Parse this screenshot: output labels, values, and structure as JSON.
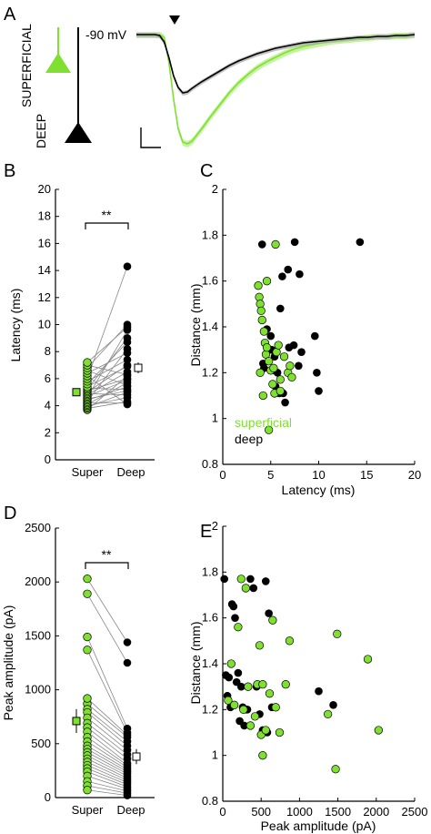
{
  "panel_labels": {
    "A": "A",
    "B": "B",
    "C": "C",
    "D": "D",
    "E": "E"
  },
  "colors": {
    "superficial": "#7fe030",
    "deep": "#000000",
    "line": "#888888"
  },
  "chart_data": [
    {
      "panel": "A",
      "type": "line",
      "annotation": "-90 mV",
      "cell_labels": [
        "SUPERFICIAL",
        "DEEP"
      ],
      "marker": "stimulus-triangle",
      "series": [
        {
          "key": "superficial",
          "x": [
            0,
            5,
            10,
            15,
            20,
            25,
            30,
            35,
            40,
            45,
            50,
            55,
            60,
            70,
            80,
            90,
            100,
            110,
            120,
            130,
            140,
            150,
            160,
            170,
            180,
            190,
            200,
            210,
            220,
            230,
            240,
            250,
            260,
            270,
            280,
            290,
            300
          ],
          "values": [
            0,
            0,
            0,
            0,
            0,
            0,
            -3,
            -30,
            -70,
            -103,
            -118,
            -120,
            -117,
            -104,
            -90,
            -77,
            -64,
            -53,
            -44,
            -36,
            -30,
            -25,
            -20,
            -16,
            -13,
            -11,
            -9,
            -7,
            -6,
            -5,
            -4,
            -3,
            -2,
            -2,
            -1,
            -1,
            0
          ]
        },
        {
          "key": "deep",
          "x": [
            0,
            5,
            10,
            15,
            20,
            25,
            30,
            35,
            40,
            45,
            50,
            55,
            60,
            70,
            80,
            90,
            100,
            110,
            120,
            130,
            140,
            150,
            160,
            170,
            180,
            190,
            200,
            210,
            220,
            230,
            240,
            250,
            260,
            270,
            280,
            290,
            300
          ],
          "values": [
            0,
            0,
            0,
            0,
            0,
            -1,
            -8,
            -25,
            -45,
            -58,
            -64,
            -63,
            -59,
            -52,
            -46,
            -40,
            -34,
            -29,
            -25,
            -21,
            -18,
            -15,
            -13,
            -11,
            -9,
            -8,
            -7,
            -6,
            -5,
            -4,
            -3,
            -3,
            -2,
            -2,
            -1,
            -1,
            0
          ]
        }
      ]
    },
    {
      "panel": "B",
      "type": "scatter",
      "categories": [
        "Super",
        "Deep"
      ],
      "ylabel": "Latency (ms)",
      "ylim": [
        0,
        20
      ],
      "yticks": [
        0,
        2,
        4,
        6,
        8,
        10,
        12,
        14,
        16,
        18,
        20
      ],
      "significance": "**",
      "super": [
        3.7,
        3.8,
        3.9,
        4.0,
        4.1,
        4.2,
        4.3,
        4.4,
        4.5,
        4.6,
        4.7,
        4.8,
        4.9,
        5.0,
        5.1,
        5.2,
        5.3,
        5.4,
        5.6,
        5.8,
        6.0,
        6.2,
        6.4,
        6.6,
        6.8,
        7.0,
        7.2
      ],
      "deep": [
        6.2,
        4.3,
        5.0,
        4.6,
        5.7,
        4.2,
        8.2,
        5.4,
        5.1,
        9.6,
        5.9,
        6.5,
        4.8,
        7.0,
        6.0,
        9.0,
        5.2,
        6.9,
        8.7,
        7.4,
        14.3,
        4.1,
        7.9,
        5.5,
        10.0,
        6.3,
        9.8
      ],
      "mean_super": 5.0,
      "mean_deep": 6.8,
      "err_super": 0.2,
      "err_deep": 0.4
    },
    {
      "panel": "C",
      "type": "scatter",
      "xlabel": "Latency (ms)",
      "ylabel": "Distance (mm)",
      "xlim": [
        0,
        20
      ],
      "ylim": [
        0.8,
        2.0
      ],
      "xticks": [
        0,
        5,
        10,
        15,
        20
      ],
      "yticks": [
        0.8,
        1,
        1.2,
        1.4,
        1.6,
        1.8,
        2
      ],
      "legend": [
        "superficial",
        "deep"
      ],
      "superficial": [
        [
          3.7,
          1.58
        ],
        [
          3.8,
          1.53
        ],
        [
          3.9,
          1.5
        ],
        [
          4.0,
          1.47
        ],
        [
          4.1,
          1.43
        ],
        [
          4.3,
          1.38
        ],
        [
          4.4,
          1.33
        ],
        [
          4.5,
          1.28
        ],
        [
          4.6,
          1.31
        ],
        [
          4.8,
          1.25
        ],
        [
          5.0,
          1.21
        ],
        [
          5.2,
          1.15
        ],
        [
          5.4,
          1.11
        ],
        [
          5.6,
          1.29
        ],
        [
          5.8,
          1.32
        ],
        [
          6.0,
          1.17
        ],
        [
          6.4,
          1.27
        ],
        [
          6.8,
          1.2
        ],
        [
          7.0,
          1.23
        ],
        [
          7.2,
          1.18
        ],
        [
          4.2,
          1.1
        ],
        [
          4.8,
          0.95
        ],
        [
          5.3,
          1.22
        ],
        [
          4.6,
          1.6
        ],
        [
          5.5,
          1.76
        ],
        [
          6.0,
          1.12
        ],
        [
          3.9,
          1.2
        ]
      ],
      "deep": [
        [
          4.1,
          1.76
        ],
        [
          6.2,
          1.62
        ],
        [
          6.8,
          1.65
        ],
        [
          7.5,
          1.77
        ],
        [
          8.0,
          1.63
        ],
        [
          14.3,
          1.77
        ],
        [
          9.6,
          1.36
        ],
        [
          10.0,
          1.12
        ],
        [
          4.3,
          1.22
        ],
        [
          4.8,
          1.3
        ],
        [
          5.0,
          1.36
        ],
        [
          5.4,
          1.27
        ],
        [
          5.7,
          1.2
        ],
        [
          5.9,
          1.11
        ],
        [
          6.5,
          1.07
        ],
        [
          6.9,
          1.31
        ],
        [
          7.4,
          1.32
        ],
        [
          7.9,
          1.23
        ],
        [
          8.2,
          1.29
        ],
        [
          5.1,
          1.3
        ],
        [
          4.6,
          1.39
        ],
        [
          6.0,
          1.48
        ],
        [
          5.2,
          1.21
        ],
        [
          4.2,
          1.24
        ],
        [
          5.5,
          1.14
        ],
        [
          6.3,
          1.11
        ],
        [
          9.8,
          1.2
        ]
      ]
    },
    {
      "panel": "D",
      "type": "scatter",
      "categories": [
        "Super",
        "Deep"
      ],
      "ylabel": "Peak amplitude (pA)",
      "ylim": [
        0,
        2500
      ],
      "yticks": [
        0,
        500,
        1000,
        1500,
        2000,
        2500
      ],
      "significance": "**",
      "super": [
        2030,
        1890,
        1490,
        1370,
        870,
        820,
        790,
        740,
        690,
        650,
        610,
        560,
        520,
        480,
        450,
        420,
        390,
        360,
        330,
        300,
        270,
        240,
        200,
        150,
        110,
        70,
        920
      ],
      "deep": [
        1440,
        1250,
        640,
        600,
        560,
        520,
        480,
        440,
        400,
        360,
        320,
        300,
        280,
        260,
        240,
        220,
        200,
        180,
        160,
        140,
        120,
        100,
        80,
        60,
        40,
        20,
        580
      ],
      "mean_super": 710,
      "mean_deep": 380,
      "err_super": 110,
      "err_deep": 70
    },
    {
      "panel": "E",
      "type": "scatter",
      "xlabel": "Peak amplitude (pA)",
      "ylabel": "Distance (mm)",
      "xlim": [
        0,
        2500
      ],
      "ylim": [
        0.8,
        2.0
      ],
      "xticks": [
        0,
        500,
        1000,
        1500,
        2000,
        2500
      ],
      "yticks": [
        0.8,
        1,
        1.2,
        1.4,
        1.6,
        1.8,
        2
      ],
      "superficial": [
        [
          70,
          1.24
        ],
        [
          150,
          1.22
        ],
        [
          200,
          1.56
        ],
        [
          240,
          1.77
        ],
        [
          300,
          1.73
        ],
        [
          330,
          1.3
        ],
        [
          360,
          1.13
        ],
        [
          420,
          1.17
        ],
        [
          450,
          1.31
        ],
        [
          480,
          1.48
        ],
        [
          500,
          1.09
        ],
        [
          520,
          1.31
        ],
        [
          560,
          1.11
        ],
        [
          610,
          1.27
        ],
        [
          650,
          1.59
        ],
        [
          690,
          1.21
        ],
        [
          740,
          1.1
        ],
        [
          820,
          1.31
        ],
        [
          870,
          1.5
        ],
        [
          1370,
          1.18
        ],
        [
          1490,
          1.53
        ],
        [
          1890,
          1.42
        ],
        [
          2030,
          1.11
        ],
        [
          1470,
          0.94
        ],
        [
          520,
          1.0
        ],
        [
          110,
          1.4
        ],
        [
          270,
          1.2
        ]
      ],
      "deep": [
        [
          20,
          1.77
        ],
        [
          40,
          1.35
        ],
        [
          60,
          1.26
        ],
        [
          100,
          1.21
        ],
        [
          140,
          1.65
        ],
        [
          160,
          1.6
        ],
        [
          180,
          1.32
        ],
        [
          200,
          1.36
        ],
        [
          220,
          1.15
        ],
        [
          240,
          1.3
        ],
        [
          260,
          1.21
        ],
        [
          280,
          1.13
        ],
        [
          300,
          1.2
        ],
        [
          320,
          1.2
        ],
        [
          360,
          1.77
        ],
        [
          400,
          1.73
        ],
        [
          440,
          1.3
        ],
        [
          480,
          1.18
        ],
        [
          520,
          1.11
        ],
        [
          560,
          1.76
        ],
        [
          600,
          1.62
        ],
        [
          640,
          1.21
        ],
        [
          1250,
          1.28
        ],
        [
          1440,
          1.22
        ],
        [
          580,
          1.1
        ],
        [
          120,
          1.66
        ],
        [
          80,
          1.34
        ]
      ]
    }
  ]
}
